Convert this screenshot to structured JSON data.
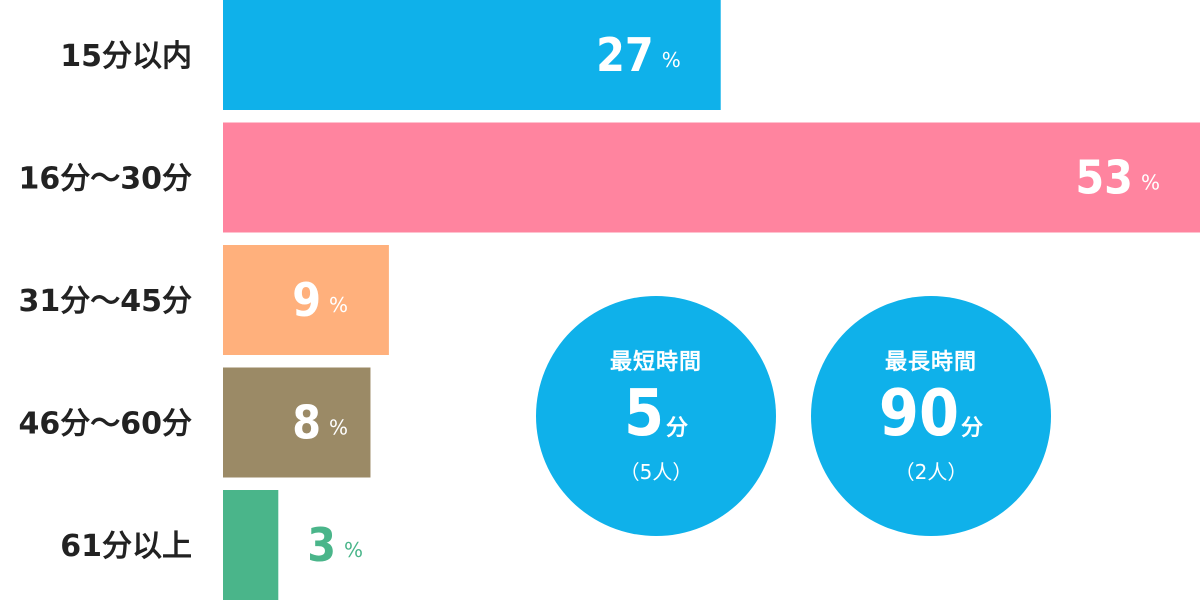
{
  "chart_data": {
    "type": "bar",
    "orientation": "horizontal",
    "categories": [
      "15分以内",
      "16分〜30分",
      "31分〜45分",
      "46分〜60分",
      "61分以上"
    ],
    "values": [
      27,
      53,
      9,
      8,
      3
    ],
    "value_unit": "%",
    "colors": [
      "#0fb1ea",
      "#ff849f",
      "#ffb07c",
      "#9b8a66",
      "#4ab58a"
    ],
    "label_colors": [
      "#ffffff",
      "#ffffff",
      "#ffffff",
      "#ffffff",
      "#4ab58a"
    ],
    "title": "",
    "xlabel": "",
    "ylabel": "",
    "xlim": [
      0,
      53
    ],
    "grid": false,
    "legend": "none"
  },
  "highlights": [
    {
      "title": "最短時間",
      "value": "5",
      "unit": "分",
      "note": "（5人）",
      "color": "#0fb1ea"
    },
    {
      "title": "最長時間",
      "value": "90",
      "unit": "分",
      "note": "（2人）",
      "color": "#0fb1ea"
    }
  ]
}
